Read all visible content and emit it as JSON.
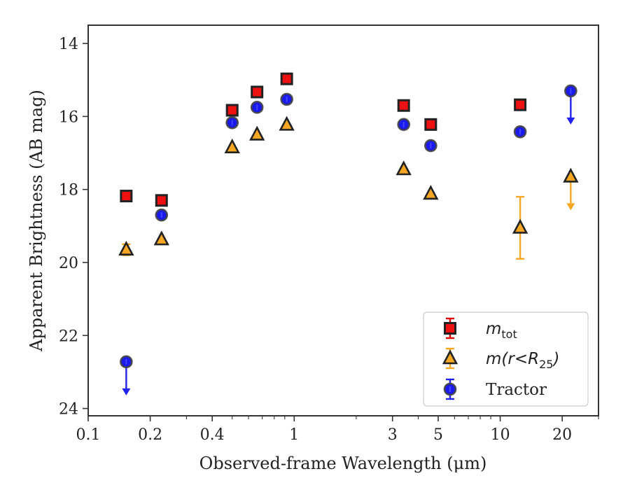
{
  "chart_data": {
    "type": "scatter",
    "title": "",
    "xlabel": "Observed-frame Wavelength (μm)",
    "ylabel": "Apparent Brightness (AB mag)",
    "xscale": "log",
    "xlim": [
      0.1,
      30
    ],
    "ylim": [
      24.2,
      13.5
    ],
    "y_inverted": true,
    "grid": false,
    "legend_position": "lower-right",
    "x_ticks": [
      {
        "value": 0.1,
        "label": "0.1"
      },
      {
        "value": 0.2,
        "label": "0.2"
      },
      {
        "value": 0.4,
        "label": "0.4"
      },
      {
        "value": 1,
        "label": "1"
      },
      {
        "value": 3,
        "label": "3"
      },
      {
        "value": 5,
        "label": "5"
      },
      {
        "value": 10,
        "label": "10"
      },
      {
        "value": 20,
        "label": "20"
      }
    ],
    "y_ticks": [
      {
        "value": 14,
        "label": "14"
      },
      {
        "value": 16,
        "label": "16"
      },
      {
        "value": 18,
        "label": "18"
      },
      {
        "value": 20,
        "label": "20"
      },
      {
        "value": 22,
        "label": "22"
      },
      {
        "value": 24,
        "label": "24"
      }
    ],
    "series": [
      {
        "name": "m_tot",
        "label_main": "m",
        "label_sub": "tot",
        "marker": "square",
        "color": "#ee1111",
        "errcolor": "#dd0000",
        "points": [
          {
            "x": 0.153,
            "y": 18.18
          },
          {
            "x": 0.227,
            "y": 18.3
          },
          {
            "x": 0.5,
            "y": 15.83
          },
          {
            "x": 0.66,
            "y": 15.33
          },
          {
            "x": 0.92,
            "y": 14.97
          },
          {
            "x": 3.4,
            "y": 15.7
          },
          {
            "x": 4.6,
            "y": 16.22
          },
          {
            "x": 12.5,
            "y": 15.68
          }
        ]
      },
      {
        "name": "m(r<R25)",
        "label_main": "m(r<R",
        "label_sub": "25",
        "label_tail": ")",
        "marker": "triangle",
        "color": "#f5a623",
        "errcolor": "#f5a623",
        "points": [
          {
            "x": 0.153,
            "y": 19.65,
            "yerr": 0.15
          },
          {
            "x": 0.227,
            "y": 19.37
          },
          {
            "x": 0.5,
            "y": 16.85
          },
          {
            "x": 0.66,
            "y": 16.5
          },
          {
            "x": 0.92,
            "y": 16.23
          },
          {
            "x": 3.4,
            "y": 17.45
          },
          {
            "x": 4.6,
            "y": 18.12
          },
          {
            "x": 12.5,
            "y": 19.05,
            "yerr": 0.85
          },
          {
            "x": 22.0,
            "y": 17.65,
            "upper_limit": true
          }
        ]
      },
      {
        "name": "Tractor",
        "label_main": "Tractor",
        "marker": "circle",
        "color": "#1a1aee",
        "errcolor": "#2222ee",
        "points": [
          {
            "x": 0.153,
            "y": 22.72,
            "upper_limit": true
          },
          {
            "x": 0.227,
            "y": 18.7
          },
          {
            "x": 0.5,
            "y": 16.17
          },
          {
            "x": 0.66,
            "y": 15.75
          },
          {
            "x": 0.92,
            "y": 15.53
          },
          {
            "x": 3.4,
            "y": 16.22
          },
          {
            "x": 4.6,
            "y": 16.8
          },
          {
            "x": 12.5,
            "y": 16.42
          },
          {
            "x": 22.0,
            "y": 15.3,
            "upper_limit": true
          }
        ]
      }
    ]
  }
}
